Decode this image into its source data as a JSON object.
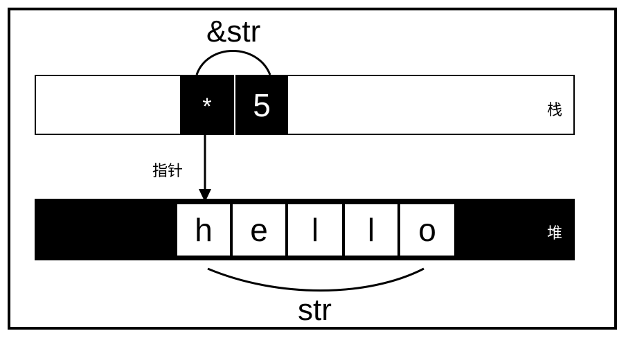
{
  "reference_label": "&str",
  "stack": {
    "label": "栈",
    "cells": [
      "*",
      "5"
    ]
  },
  "pointer_label": "指针",
  "heap": {
    "label": "堆",
    "cells": [
      "h",
      "e",
      "l",
      "l",
      "o"
    ]
  },
  "slice_label": "str",
  "colors": {
    "fill": "#000000",
    "background": "#ffffff"
  }
}
